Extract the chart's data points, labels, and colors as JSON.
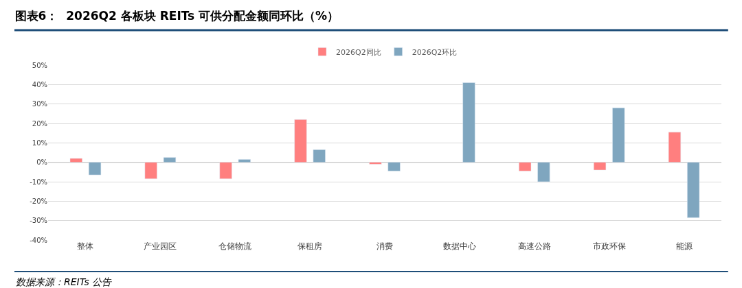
{
  "chart_data": {
    "type": "bar",
    "title": "图表6：  2026Q2 各板块 REITs 可供分配金额同环比（%）",
    "categories": [
      "整体",
      "产业园区",
      "仓储物流",
      "保租房",
      "消费",
      "数据中心",
      "高速公路",
      "市政环保",
      "能源"
    ],
    "series": [
      {
        "name": "2026Q2同比",
        "color": "#ff7f7f",
        "values": [
          2,
          -8.5,
          -8.5,
          22,
          -1,
          null,
          -4.5,
          -4,
          15.5
        ]
      },
      {
        "name": "2026Q2环比",
        "color": "#7fa6bf",
        "values": [
          -6.5,
          2.5,
          1.5,
          6.5,
          -4.5,
          41,
          -10,
          28,
          -28.5
        ]
      }
    ],
    "ylim": [
      -40,
      50
    ],
    "yticks": [
      {
        "value": -40,
        "label": "-40%"
      },
      {
        "value": -30,
        "label": "-30%"
      },
      {
        "value": -20,
        "label": "-20%"
      },
      {
        "value": -10,
        "label": "-10%"
      },
      {
        "value": 0,
        "label": "0%"
      },
      {
        "value": 10,
        "label": "10%"
      },
      {
        "value": 20,
        "label": "20%"
      },
      {
        "value": 30,
        "label": "30%"
      },
      {
        "value": 40,
        "label": "40%"
      },
      {
        "value": 50,
        "label": "50%"
      }
    ],
    "grid": "y",
    "legend": "top",
    "annotations": [
      "数据来源：REITs 公告"
    ]
  }
}
